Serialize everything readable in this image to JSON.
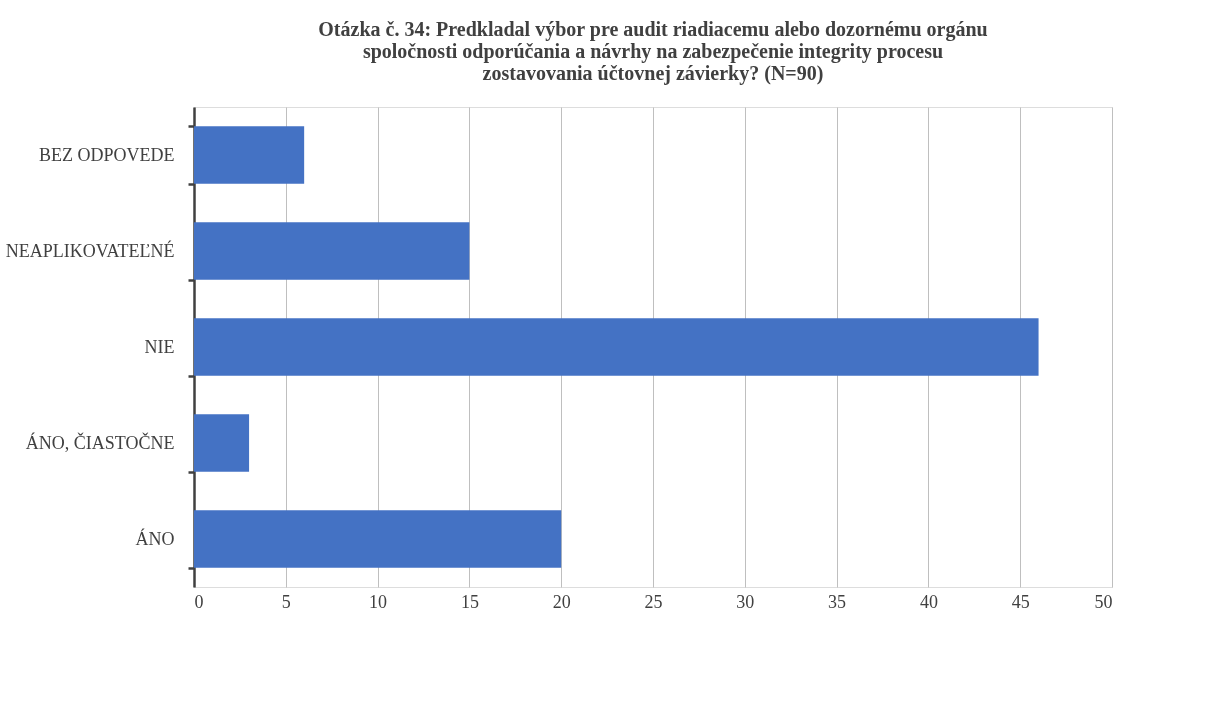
{
  "chart_data": {
    "type": "bar",
    "orientation": "horizontal",
    "title": "Otázka č. 34: Predkladal výbor pre audit riadiacemu alebo dozornému orgánu spoločnosti odporúčania a návrhy na zabezpečenie integrity procesu zostavovania účtovnej závierky? (N=90)",
    "categories": [
      "BEZ ODPOVEDE",
      "NEAPLIKOVATEĽNÉ",
      "NIE",
      "ÁNO, ČIASTOČNE",
      "ÁNO"
    ],
    "values": [
      6,
      15,
      46,
      3,
      20
    ],
    "color": "#4472c4",
    "xlim": [
      0,
      50
    ],
    "xticks": [
      0,
      5,
      10,
      15,
      20,
      25,
      30,
      35,
      40,
      45,
      50
    ],
    "grid": "x",
    "legend": false
  }
}
